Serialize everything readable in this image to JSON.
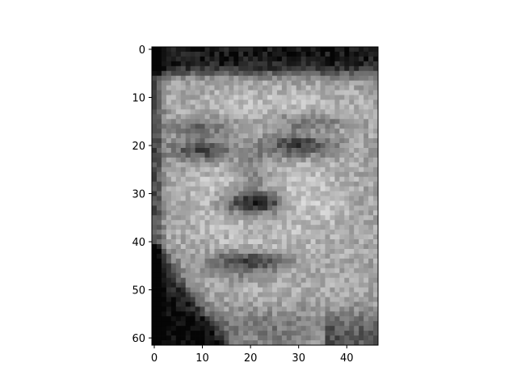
{
  "chart_data": {
    "type": "heatmap",
    "description_kind": "grayscale image displayed with imshow",
    "colormap": "gray",
    "image_shape": [
      62,
      47
    ],
    "xlim": [
      -0.5,
      46.5
    ],
    "ylim": [
      61.5,
      -0.5
    ],
    "x_ticks": [
      0,
      10,
      20,
      30,
      40
    ],
    "y_ticks": [
      0,
      10,
      20,
      30,
      40,
      50,
      60
    ],
    "title": "",
    "xlabel": "",
    "ylabel": "",
    "grid": false,
    "colors": {
      "axis": "#000000",
      "background": "#ffffff"
    }
  }
}
